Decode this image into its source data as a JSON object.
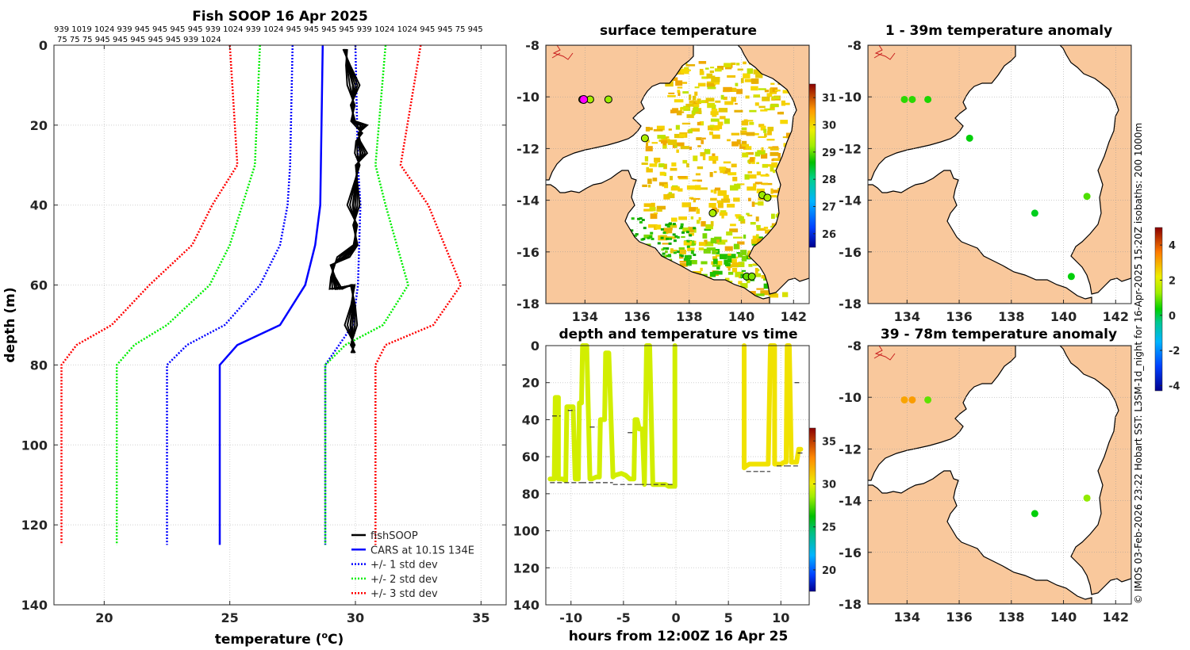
{
  "profile": {
    "title": "Fish SOOP 16 Apr 2025",
    "ids_line1": "939 1019 1024 939 945 945 945 945 939 1024 939 1024 945 945 945 945 939 1024 1024 945 945 75 945",
    "ids_line2": "75 75 75 945 945 945 945 945 939 1024",
    "xlabel_main": "temperature (",
    "xlabel_sup": "o",
    "xlabel_tail": "C)",
    "ylabel": "depth (m)",
    "legend": [
      {
        "label": "fishSOOP",
        "color": "#000000",
        "style": "solid"
      },
      {
        "label": "CARS at 10.1S 134E",
        "color": "#0000ff",
        "style": "solid"
      },
      {
        "label": "+/- 1 std dev",
        "color": "#0000ff",
        "style": "dotted"
      },
      {
        "label": "+/- 2 std dev",
        "color": "#00ee00",
        "style": "dotted"
      },
      {
        "label": "+/- 3 std dev",
        "color": "#ff0000",
        "style": "dotted"
      }
    ]
  },
  "map_titles": {
    "sst": "surface temperature",
    "anom1": "1 - 39m temperature anomaly",
    "anom2": "39 - 78m temperature anomaly",
    "time": "depth and temperature vs time"
  },
  "time_xlabel": "hours from 12:00Z 16 Apr 25",
  "credit": "© IMOS 03-Feb-2026 23:22 Hobart SST: L3SM-1d_night for 16-Apr-2025 15:20Z isobaths: 200  1000m",
  "colors": {
    "land": "#f9c89c",
    "river": "#c81e1e",
    "profile_black": "#000000",
    "cars_blue": "#0000ff",
    "std2_green": "#00ee00",
    "std3_red": "#ff0000"
  },
  "chart_data": [
    {
      "type": "line",
      "title": "Fish SOOP 16 Apr 2025",
      "xlabel": "temperature (oC)",
      "ylabel": "depth (m)",
      "xlim": [
        18,
        36
      ],
      "ylim": [
        0,
        140
      ],
      "y_reversed": true,
      "xticks": [
        20,
        25,
        30,
        35
      ],
      "yticks": [
        0,
        20,
        40,
        60,
        80,
        100,
        120,
        140
      ],
      "series": [
        {
          "name": "CARS at 10.1S 134E",
          "depth": [
            0,
            40,
            50,
            60,
            70,
            75,
            80,
            125
          ],
          "temp": [
            28.7,
            28.6,
            28.4,
            28.0,
            27.0,
            25.3,
            24.6,
            24.6
          ]
        },
        {
          "name": "+1 std dev",
          "depth": [
            0,
            30,
            40,
            60,
            70,
            80,
            125
          ],
          "temp": [
            30.0,
            30.1,
            30.2,
            30.1,
            29.9,
            28.8,
            28.8
          ]
        },
        {
          "name": "-1 std dev",
          "depth": [
            0,
            30,
            40,
            50,
            60,
            70,
            75,
            80,
            125
          ],
          "temp": [
            27.5,
            27.4,
            27.3,
            27.0,
            26.2,
            24.8,
            23.3,
            22.5,
            22.5
          ]
        },
        {
          "name": "+2 std dev",
          "depth": [
            0,
            30,
            40,
            60,
            70,
            75,
            80,
            125
          ],
          "temp": [
            31.2,
            30.8,
            31.2,
            32.1,
            31.1,
            29.6,
            28.8,
            28.8
          ]
        },
        {
          "name": "-2 std dev",
          "depth": [
            0,
            30,
            40,
            50,
            60,
            70,
            75,
            80,
            125
          ],
          "temp": [
            26.2,
            26.0,
            25.5,
            25.0,
            24.2,
            22.5,
            21.2,
            20.5,
            20.5
          ]
        },
        {
          "name": "+3 std dev",
          "depth": [
            0,
            30,
            40,
            60,
            70,
            75,
            80,
            125
          ],
          "temp": [
            32.6,
            31.8,
            32.9,
            34.2,
            33.1,
            31.2,
            30.8,
            30.8
          ]
        },
        {
          "name": "-3 std dev",
          "depth": [
            0,
            30,
            40,
            50,
            60,
            70,
            75,
            80,
            125
          ],
          "temp": [
            25.0,
            25.3,
            24.3,
            23.5,
            21.8,
            20.3,
            18.9,
            18.3,
            18.3
          ]
        },
        {
          "name": "fishSOOP",
          "depth": [
            1,
            5,
            10,
            15,
            19,
            20,
            22,
            24,
            27,
            30,
            35,
            40,
            45,
            50,
            53,
            55,
            58,
            61,
            60,
            65,
            70,
            75,
            77
          ],
          "temp": [
            29.6,
            29.7,
            29.9,
            29.9,
            29.9,
            30.2,
            30.2,
            30.1,
            30.2,
            30.1,
            30.0,
            29.9,
            30.0,
            30.0,
            29.5,
            29.1,
            29.1,
            29.2,
            29.9,
            29.9,
            29.8,
            29.9,
            29.9
          ]
        }
      ]
    },
    {
      "type": "scatter",
      "title": "surface temperature",
      "xlim": [
        132.5,
        142.6
      ],
      "ylim": [
        -18,
        -8
      ],
      "xticks": [
        134,
        136,
        138,
        140,
        142
      ],
      "yticks": [
        -18,
        -16,
        -14,
        -12,
        -10,
        -8
      ],
      "colorbar": {
        "min": 25.5,
        "max": 31.5,
        "ticks": [
          26,
          27,
          28,
          29,
          30,
          31
        ]
      },
      "points": [
        {
          "lon": 133.9,
          "lat": -10.1,
          "value": 29.4
        },
        {
          "lon": 134.2,
          "lat": -10.1,
          "value": 29.3
        },
        {
          "lon": 134.9,
          "lat": -10.1,
          "value": 29.2
        },
        {
          "lon": 136.3,
          "lat": -11.6,
          "value": 29.3
        },
        {
          "lon": 138.9,
          "lat": -14.5,
          "value": 29.3
        },
        {
          "lon": 140.8,
          "lat": -13.8,
          "value": 29.2
        },
        {
          "lon": 141.0,
          "lat": -13.9,
          "value": 29.3
        },
        {
          "lon": 140.2,
          "lat": -16.95,
          "value": 29.0
        },
        {
          "lon": 140.4,
          "lat": -16.95,
          "value": 29.1
        }
      ]
    },
    {
      "type": "scatter",
      "title": "1 - 39m temperature anomaly",
      "xlim": [
        132.5,
        142.6
      ],
      "ylim": [
        -18,
        -8
      ],
      "xticks": [
        134,
        136,
        138,
        140,
        142
      ],
      "yticks": [
        -18,
        -16,
        -14,
        -12,
        -10,
        -8
      ],
      "colorbar": {
        "min": -4.3,
        "max": 5.0,
        "ticks": [
          -4,
          -2,
          0,
          2,
          4
        ]
      },
      "points": [
        {
          "lon": 133.9,
          "lat": -10.1,
          "value": 0.6
        },
        {
          "lon": 134.2,
          "lat": -10.1,
          "value": 0.6
        },
        {
          "lon": 134.8,
          "lat": -10.1,
          "value": 0.5
        },
        {
          "lon": 136.4,
          "lat": -11.6,
          "value": 0.3
        },
        {
          "lon": 138.9,
          "lat": -14.5,
          "value": 0.2
        },
        {
          "lon": 140.9,
          "lat": -13.85,
          "value": 0.8
        },
        {
          "lon": 140.3,
          "lat": -16.95,
          "value": 0.3
        }
      ]
    },
    {
      "type": "scatter",
      "title": "39 - 78m temperature anomaly",
      "xlim": [
        132.5,
        142.6
      ],
      "ylim": [
        -18,
        -8
      ],
      "xticks": [
        134,
        136,
        138,
        140,
        142
      ],
      "yticks": [
        -18,
        -16,
        -14,
        -12,
        -10,
        -8
      ],
      "colorbar": {
        "min": -4.3,
        "max": 5.0,
        "ticks": [
          -4,
          -2,
          0,
          2,
          4
        ]
      },
      "points": [
        {
          "lon": 133.9,
          "lat": -10.1,
          "value": 3.1
        },
        {
          "lon": 134.2,
          "lat": -10.1,
          "value": 3.2
        },
        {
          "lon": 134.8,
          "lat": -10.1,
          "value": 0.9
        },
        {
          "lon": 138.9,
          "lat": -14.5,
          "value": 0.3
        },
        {
          "lon": 140.9,
          "lat": -13.9,
          "value": 1.2
        }
      ]
    },
    {
      "type": "scatter",
      "title": "depth and temperature vs time",
      "xlabel": "hours from 12:00Z 16 Apr 25",
      "xlim": [
        -12.4,
        12.7
      ],
      "ylim": [
        0,
        140
      ],
      "y_reversed": true,
      "xticks": [
        -10,
        -5,
        0,
        5,
        10
      ],
      "yticks": [
        0,
        20,
        40,
        60,
        80,
        100,
        120,
        140
      ],
      "colorbar": {
        "min": 17.5,
        "max": 36.5,
        "ticks": [
          20,
          25,
          30,
          35
        ]
      },
      "segments": [
        {
          "t": [
            -12.0,
            -11.6,
            -11.5,
            -11.2,
            -11.2,
            -10.8,
            -10.5,
            -10.4,
            -9.8,
            -9.6,
            -9.3,
            -9.2,
            -9.0,
            -8.9,
            -8.5,
            -8.2,
            -8.0,
            -7.6,
            -7.3,
            -7.2,
            -6.8,
            -6.7,
            -6.4,
            -6.0,
            -5.8,
            -5.2,
            -4.8,
            -4.4,
            -4.0,
            -3.9,
            -3.7,
            -3.5,
            -3.2,
            -3.0,
            -2.8,
            -2.5,
            -2.2,
            -1.8,
            -1.5,
            -1.0,
            -0.7,
            -0.2
          ],
          "depth": [
            72,
            72,
            28,
            28,
            72,
            72,
            73,
            33,
            33,
            72,
            72,
            31,
            31,
            0,
            0,
            72,
            72,
            71,
            71,
            40,
            40,
            4,
            4,
            71,
            70,
            69,
            70,
            72,
            72,
            40,
            40,
            45,
            45,
            75,
            0,
            0,
            75,
            75,
            75,
            75,
            76,
            76
          ],
          "temp": 30.5
        },
        {
          "t": [
            -0.1,
            -0.1
          ],
          "depth": [
            76,
            0
          ],
          "temp": 30.5
        },
        {
          "t": [
            6.5,
            6.5,
            6.7,
            7.0,
            7.5,
            8.0,
            8.5,
            8.8,
            9.0,
            9.2,
            9.4,
            9.4,
            9.6,
            10.0,
            10.3,
            10.4,
            10.5,
            10.6,
            10.8,
            11.0,
            11.2,
            11.5,
            11.7,
            11.9
          ],
          "depth": [
            0,
            66,
            65,
            64,
            64,
            64,
            64,
            64,
            0,
            0,
            0,
            64,
            64,
            64,
            63,
            63,
            63,
            0,
            0,
            63,
            63,
            63,
            56,
            56
          ],
          "temp": 31.5
        }
      ],
      "climatology_marks": [
        {
          "t": [
            -11.8,
            -11.0
          ],
          "depth": 38
        },
        {
          "t": [
            -10.3,
            -9.6
          ],
          "depth": 35
        },
        {
          "t": [
            -8.2,
            -7.5
          ],
          "depth": 44
        },
        {
          "t": [
            -4.6,
            -4.0
          ],
          "depth": 47
        },
        {
          "t": [
            -12.0,
            -9.0
          ],
          "depth": 74
        },
        {
          "t": [
            -9.0,
            -6.0
          ],
          "depth": 74
        },
        {
          "t": [
            -6.0,
            -3.5
          ],
          "depth": 75
        },
        {
          "t": [
            -3.5,
            -0.2
          ],
          "depth": 75
        },
        {
          "t": [
            6.7,
            8.0
          ],
          "depth": 68
        },
        {
          "t": [
            8.0,
            9.0
          ],
          "depth": 68
        },
        {
          "t": [
            9.6,
            10.5
          ],
          "depth": 65
        },
        {
          "t": [
            10.5,
            11.7
          ],
          "depth": 65
        },
        {
          "t": [
            11.3,
            11.9
          ],
          "depth": 20
        },
        {
          "t": [
            11.6,
            12.1
          ],
          "depth": 58
        }
      ]
    }
  ]
}
